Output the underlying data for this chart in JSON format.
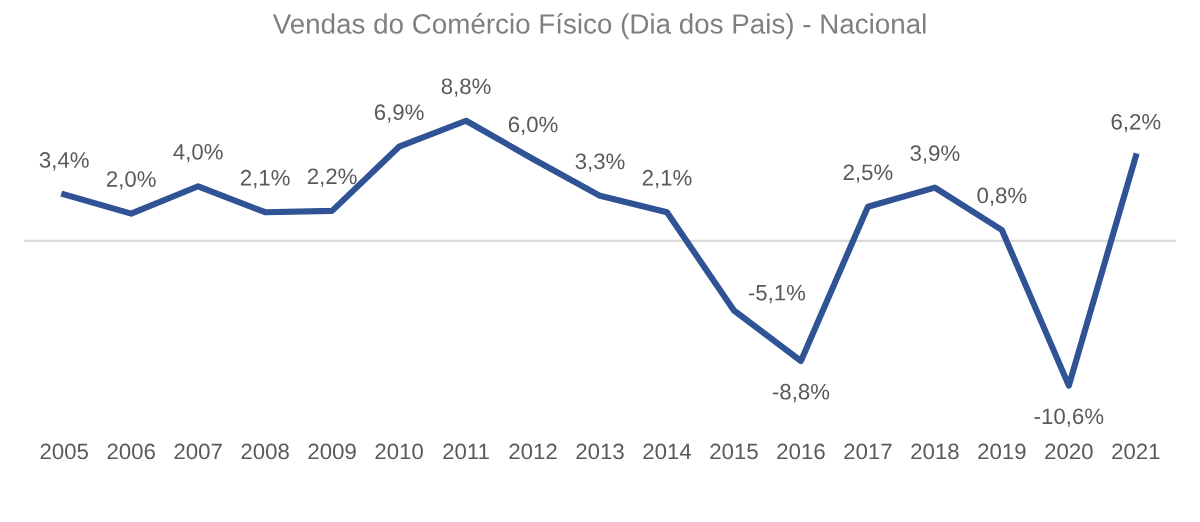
{
  "chart_data": {
    "type": "line",
    "title": "Vendas do Comércio Físico (Dia dos Pais) - Nacional",
    "categories": [
      "2005",
      "2006",
      "2007",
      "2008",
      "2009",
      "2010",
      "2011",
      "2012",
      "2013",
      "2014",
      "2015",
      "2016",
      "2017",
      "2018",
      "2019",
      "2020",
      "2021"
    ],
    "series": [
      {
        "color": "#2f5394",
        "values": [
          3.4,
          2.0,
          4.0,
          2.1,
          2.2,
          6.9,
          8.8,
          6.0,
          3.3,
          2.1,
          -5.1,
          -8.8,
          2.5,
          3.9,
          0.8,
          -10.6,
          6.2
        ],
        "value_labels": [
          "3,4%",
          "2,0%",
          "4,0%",
          "2,1%",
          "2,2%",
          "6,9%",
          "8,8%",
          "6,0%",
          "3,3%",
          "2,1%",
          "-5,1%",
          "-8,8%",
          "2,5%",
          "3,9%",
          "0,8%",
          "-10,6%",
          "6,2%"
        ]
      }
    ],
    "ref_lines": [
      {
        "axis": "y",
        "value": 0,
        "color": "#d9d9d9"
      }
    ],
    "grid": false,
    "legend": false,
    "tick_labels": "x",
    "marker": "none",
    "line_style": "solid"
  }
}
